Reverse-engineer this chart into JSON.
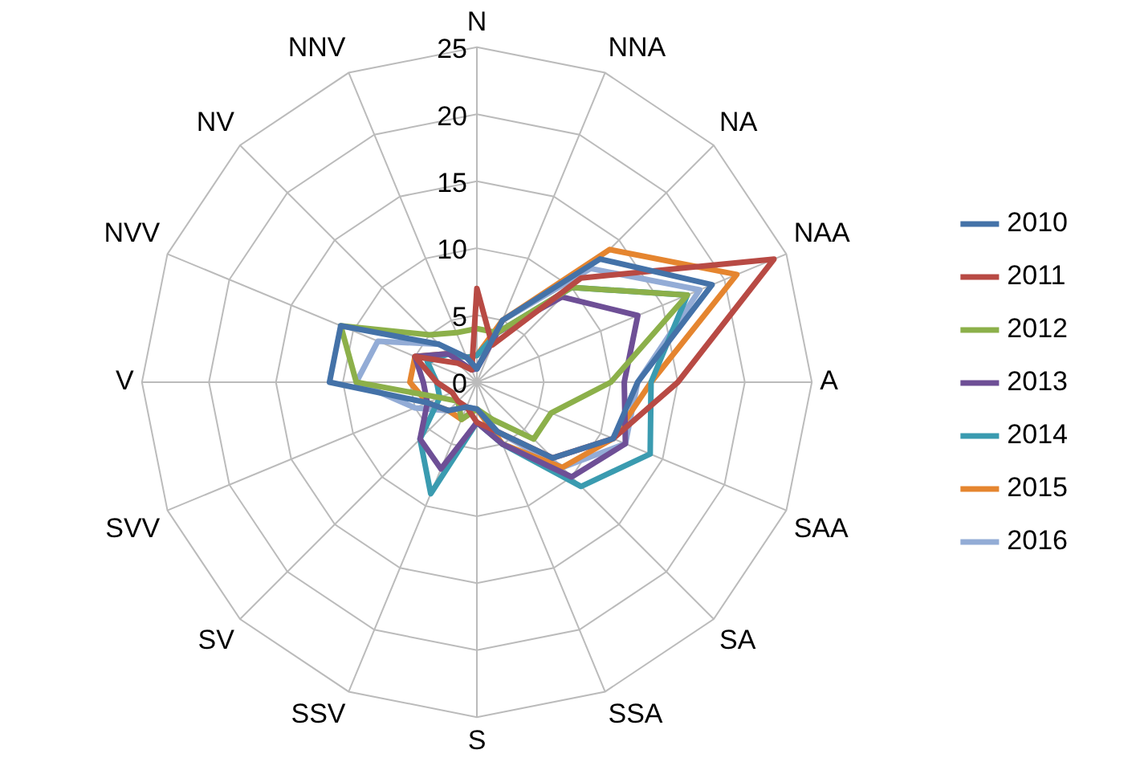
{
  "chart_data": {
    "type": "radar",
    "categories": [
      "N",
      "NNA",
      "NA",
      "NAA",
      "A",
      "SAA",
      "SA",
      "SSA",
      "S",
      "SSV",
      "SV",
      "SVV",
      "V",
      "NVV",
      "NV",
      "NNV"
    ],
    "series": [
      {
        "name": "2010",
        "color": "#4472a8",
        "values": [
          1,
          5,
          13,
          19,
          12,
          11,
          8,
          4,
          2,
          2,
          3,
          4,
          11,
          11,
          4,
          2
        ]
      },
      {
        "name": "2011",
        "color": "#b84a44",
        "values": [
          7,
          3,
          11,
          24,
          15,
          11,
          8,
          4,
          3,
          2,
          2,
          2,
          3,
          5,
          2,
          1
        ]
      },
      {
        "name": "2012",
        "color": "#8cb04a",
        "values": [
          4,
          4,
          10,
          17,
          10,
          6,
          6,
          3,
          2,
          3,
          2,
          3,
          9,
          11,
          5,
          4
        ]
      },
      {
        "name": "2013",
        "color": "#6e4f96",
        "values": [
          1,
          4,
          9,
          13,
          11,
          12,
          10,
          5,
          3,
          7,
          6,
          4,
          4,
          5,
          3,
          1
        ]
      },
      {
        "name": "2014",
        "color": "#3a9bb0",
        "values": [
          2,
          4,
          10,
          17,
          13,
          14,
          11,
          5,
          3,
          9,
          6,
          3,
          3,
          4,
          3,
          2
        ]
      },
      {
        "name": "2015",
        "color": "#e5852f",
        "values": [
          2,
          5,
          14,
          21,
          13,
          11,
          9,
          5,
          2,
          3,
          3,
          4,
          5,
          5,
          3,
          2
        ]
      },
      {
        "name": "2016",
        "color": "#93acd6",
        "values": [
          1,
          5,
          12,
          18,
          12,
          12,
          9,
          4,
          2,
          2,
          3,
          5,
          9,
          8,
          4,
          2
        ]
      }
    ],
    "ylim": [
      0,
      25
    ],
    "yticks": [
      0,
      5,
      10,
      15,
      20,
      25
    ],
    "grid": true,
    "legend": "right",
    "marker": "none",
    "line_style": "solid"
  }
}
